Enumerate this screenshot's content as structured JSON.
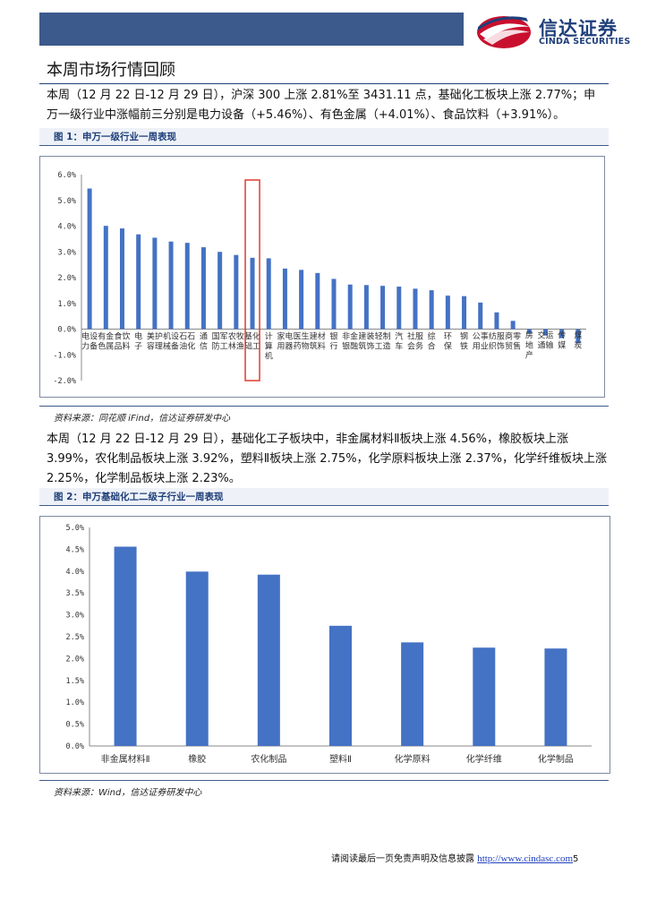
{
  "header": {
    "logo_cn": "信达证券",
    "logo_en": "CINDA SECURITIES"
  },
  "section_title": "本周市场行情回顾",
  "para1": "本周（12 月 22 日-12 月 29 日），沪深 300 上涨 2.81%至 3431.11 点，基础化工板块上涨 2.77%；申万一级行业中涨幅前三分别是电力设备（+5.46%）、有色金属（+4.01%）、食品饮料（+3.91%）。",
  "fig1": {
    "caption": "图 1：申万一级行业一周表现",
    "source": "资料来源：同花顺 iFind，信达证券研发中心"
  },
  "para2": "本周（12 月 22 日-12 月 29 日），基础化工子板块中，非金属材料Ⅱ板块上涨 4.56%，橡胶板块上涨 3.99%，农化制品板块上涨 3.92%，塑料Ⅱ板块上涨 2.75%，化学原料板块上涨 2.37%，化学纤维板块上涨 2.25%，化学制品板块上涨 2.23%。",
  "fig2": {
    "caption": "图 2：申万基础化工二级子行业一周表现",
    "source": "资料来源：Wind，信达证券研发中心"
  },
  "footer": {
    "text": "请阅读最后一页免责声明及信息披露",
    "link": "http://www.cindasc.com",
    "page": "5"
  },
  "colors": {
    "bar": "#4472c4",
    "highlight_box": "#e03c31",
    "brand": "#1f3f7a"
  },
  "chart_data": [
    {
      "type": "bar",
      "title": "",
      "ylim": [
        -2,
        6
      ],
      "yticks": [
        "-2.0%",
        "-1.0%",
        "0.0%",
        "1.0%",
        "2.0%",
        "3.0%",
        "4.0%",
        "5.0%",
        "6.0%"
      ],
      "categories": [
        "电力设备",
        "有色金属",
        "食品饮料",
        "电子",
        "美容护理",
        "机械设备",
        "石油石化",
        "通信",
        "国防军工",
        "农林牧渔",
        "基础化工",
        "计算机",
        "家用电器",
        "医药生物",
        "建筑材料",
        "银行",
        "非银金融",
        "建筑装饰",
        "轻工制造",
        "汽车",
        "社会服务",
        "综合",
        "环保",
        "钢铁",
        "公用事业",
        "纺织服饰",
        "商贸零售",
        "房地产",
        "交通运输",
        "传媒",
        "煤炭"
      ],
      "values": [
        5.46,
        4.01,
        3.91,
        3.68,
        3.55,
        3.4,
        3.35,
        3.18,
        3.0,
        2.88,
        2.77,
        2.75,
        2.35,
        2.3,
        2.18,
        1.95,
        1.73,
        1.71,
        1.68,
        1.65,
        1.57,
        1.51,
        1.3,
        1.28,
        1.03,
        0.65,
        0.32,
        -0.18,
        -0.25,
        -0.35,
        -0.55
      ],
      "highlight": "基础化工",
      "grid": false,
      "legend": "none"
    },
    {
      "type": "bar",
      "title": "",
      "ylim": [
        0,
        5
      ],
      "yticks": [
        "0.0%",
        "0.5%",
        "1.0%",
        "1.5%",
        "2.0%",
        "2.5%",
        "3.0%",
        "3.5%",
        "4.0%",
        "4.5%",
        "5.0%"
      ],
      "categories": [
        "非金属材料Ⅱ",
        "橡胶",
        "农化制品",
        "塑料Ⅱ",
        "化学原料",
        "化学纤维",
        "化学制品"
      ],
      "values": [
        4.56,
        3.99,
        3.92,
        2.75,
        2.37,
        2.25,
        2.23
      ],
      "grid": false,
      "legend": "none"
    }
  ]
}
